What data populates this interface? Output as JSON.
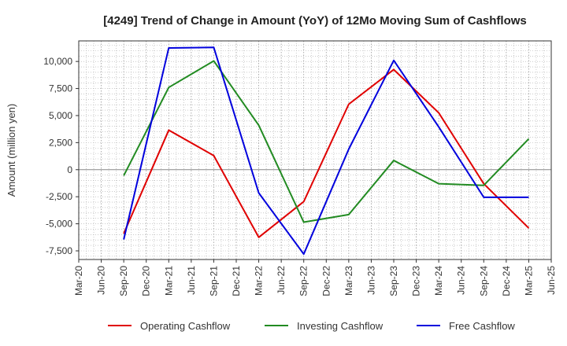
{
  "chart_data": {
    "type": "line",
    "title": "[4249]  Trend of Change in Amount (YoY) of 12Mo Moving Sum of Cashflows",
    "xlabel": "",
    "ylabel": "Amount (million yen)",
    "ylim": [
      -8300,
      11900
    ],
    "yticks": [
      -7500,
      -5000,
      -2500,
      0,
      2500,
      5000,
      7500,
      10000
    ],
    "ytick_labels": [
      "-7,500",
      "-5,000",
      "-2,500",
      "0",
      "2,500",
      "5,000",
      "7,500",
      "10,000"
    ],
    "categories": [
      "Mar-20",
      "Jun-20",
      "Sep-20",
      "Dec-20",
      "Mar-21",
      "Jun-21",
      "Sep-21",
      "Dec-21",
      "Mar-22",
      "Jun-22",
      "Sep-22",
      "Dec-22",
      "Mar-23",
      "Jun-23",
      "Sep-23",
      "Dec-23",
      "Mar-24",
      "Jun-24",
      "Sep-24",
      "Dec-24",
      "Mar-25",
      "Jun-25"
    ],
    "grid": true,
    "legend_position": "bottom",
    "series": [
      {
        "name": "Operating Cashflow",
        "color": "#e00000",
        "values": [
          null,
          null,
          -5900,
          null,
          3650,
          null,
          1300,
          null,
          -6250,
          null,
          -2950,
          null,
          6050,
          null,
          9250,
          null,
          5250,
          null,
          -1300,
          null,
          -5400,
          null
        ]
      },
      {
        "name": "Investing Cashflow",
        "color": "#228b22",
        "values": [
          null,
          null,
          -550,
          null,
          7600,
          null,
          10050,
          null,
          4100,
          null,
          -4850,
          null,
          -4150,
          null,
          850,
          null,
          -1300,
          null,
          -1450,
          null,
          2850,
          null
        ]
      },
      {
        "name": "Free Cashflow",
        "color": "#0000dd",
        "values": [
          null,
          null,
          -6450,
          null,
          11250,
          null,
          11300,
          null,
          -2150,
          null,
          -7800,
          null,
          1900,
          null,
          10100,
          null,
          3950,
          null,
          -2550,
          null,
          -2550,
          null
        ]
      }
    ]
  }
}
